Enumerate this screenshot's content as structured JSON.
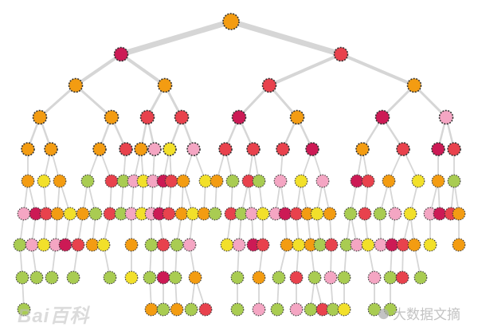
{
  "tree": {
    "type": "decision-tree",
    "colors": {
      "orange": "#f39c12",
      "crimson": "#cc1a55",
      "red": "#e8424d",
      "pink": "#f4a6c3",
      "yellow": "#f2e02a",
      "green": "#a9cc52",
      "edge": "#d6d6d6",
      "border": "#333333"
    },
    "root_color": "orange",
    "level2_colors": [
      "crimson",
      "red"
    ]
  },
  "watermarks": {
    "left_text": "Bai百科",
    "right_text": "大数据文摘",
    "right_icon": "wechat-icon"
  }
}
